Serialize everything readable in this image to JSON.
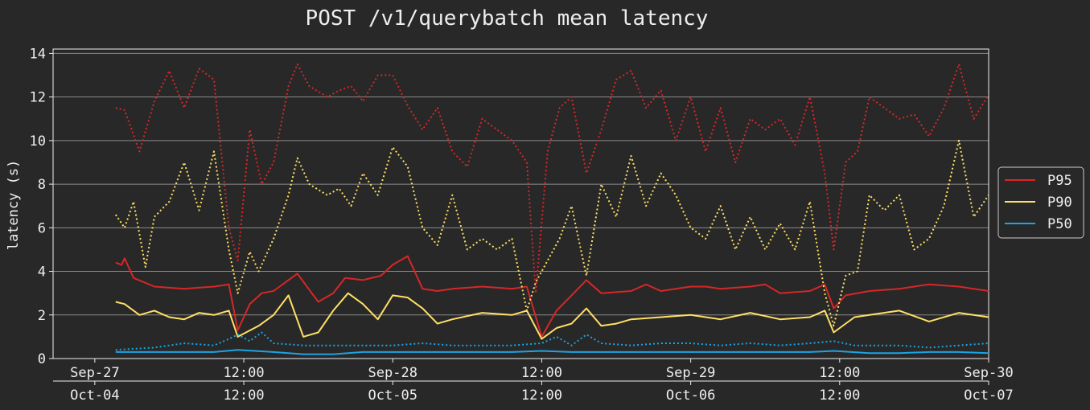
{
  "chart_data": {
    "type": "line",
    "title": "POST /v1/querybatch mean latency",
    "ylabel": "latency (s)",
    "ylim": [
      0,
      14.2
    ],
    "yticks": [
      0,
      2,
      4,
      6,
      8,
      10,
      12,
      14
    ],
    "xlim": [
      -0.14,
      3.0
    ],
    "grid": "horizontal",
    "legend_position": "right",
    "x_axis_primary": {
      "ticks": [
        0,
        0.5,
        1,
        1.5,
        2,
        2.5,
        3
      ],
      "labels": [
        "Sep-27",
        "12:00",
        "Sep-28",
        "12:00",
        "Sep-29",
        "12:00",
        "Sep-30"
      ]
    },
    "x_axis_secondary": {
      "ticks": [
        0,
        0.5,
        1,
        1.5,
        2,
        2.5,
        3
      ],
      "labels": [
        "Oct-04",
        "12:00",
        "Oct-05",
        "12:00",
        "Oct-06",
        "12:00",
        "Oct-07"
      ]
    },
    "series": [
      {
        "name": "P95",
        "color": "#d62728",
        "style": "solid",
        "period": "Sep-27 to Sep-30",
        "x": [
          0.07,
          0.09,
          0.1,
          0.13,
          0.2,
          0.3,
          0.4,
          0.45,
          0.48,
          0.52,
          0.56,
          0.6,
          0.68,
          0.75,
          0.8,
          0.84,
          0.9,
          0.96,
          1.0,
          1.05,
          1.1,
          1.15,
          1.2,
          1.3,
          1.4,
          1.45,
          1.5,
          1.55,
          1.6,
          1.65,
          1.7,
          1.8,
          1.85,
          1.9,
          2.0,
          2.05,
          2.1,
          2.2,
          2.25,
          2.3,
          2.4,
          2.45,
          2.48,
          2.52,
          2.6,
          2.7,
          2.8,
          2.9,
          3.0
        ],
        "y": [
          4.4,
          4.3,
          4.6,
          3.7,
          3.3,
          3.2,
          3.3,
          3.4,
          1.3,
          2.5,
          3.0,
          3.1,
          3.9,
          2.6,
          3.0,
          3.7,
          3.6,
          3.8,
          4.3,
          4.7,
          3.2,
          3.1,
          3.2,
          3.3,
          3.2,
          3.3,
          1.0,
          2.2,
          2.9,
          3.6,
          3.0,
          3.1,
          3.4,
          3.1,
          3.3,
          3.3,
          3.2,
          3.3,
          3.4,
          3.0,
          3.1,
          3.4,
          2.3,
          2.9,
          3.1,
          3.2,
          3.4,
          3.3,
          3.1
        ]
      },
      {
        "name": "P90",
        "color": "#ffe066",
        "style": "solid",
        "period": "Sep-27 to Sep-30",
        "x": [
          0.07,
          0.1,
          0.15,
          0.2,
          0.25,
          0.3,
          0.35,
          0.4,
          0.45,
          0.48,
          0.55,
          0.6,
          0.65,
          0.7,
          0.75,
          0.8,
          0.85,
          0.9,
          0.95,
          1.0,
          1.05,
          1.1,
          1.15,
          1.2,
          1.3,
          1.4,
          1.45,
          1.5,
          1.55,
          1.6,
          1.65,
          1.7,
          1.75,
          1.8,
          1.9,
          2.0,
          2.1,
          2.2,
          2.3,
          2.4,
          2.45,
          2.48,
          2.55,
          2.6,
          2.7,
          2.8,
          2.9,
          3.0
        ],
        "y": [
          2.6,
          2.5,
          2.0,
          2.2,
          1.9,
          1.8,
          2.1,
          2.0,
          2.2,
          1.0,
          1.5,
          2.0,
          2.9,
          1.0,
          1.2,
          2.2,
          3.0,
          2.5,
          1.8,
          2.9,
          2.8,
          2.3,
          1.6,
          1.8,
          2.1,
          2.0,
          2.2,
          0.9,
          1.4,
          1.6,
          2.3,
          1.5,
          1.6,
          1.8,
          1.9,
          2.0,
          1.8,
          2.1,
          1.8,
          1.9,
          2.2,
          1.2,
          1.9,
          2.0,
          2.2,
          1.7,
          2.1,
          1.9
        ]
      },
      {
        "name": "P50",
        "color": "#1ba4e4",
        "style": "solid",
        "period": "Sep-27 to Sep-30",
        "x": [
          0.07,
          0.2,
          0.4,
          0.48,
          0.6,
          0.7,
          0.8,
          0.9,
          1.0,
          1.1,
          1.2,
          1.3,
          1.4,
          1.5,
          1.6,
          1.7,
          1.8,
          1.9,
          2.0,
          2.1,
          2.2,
          2.3,
          2.4,
          2.48,
          2.6,
          2.7,
          2.8,
          2.9,
          3.0
        ],
        "y": [
          0.3,
          0.3,
          0.3,
          0.4,
          0.3,
          0.2,
          0.2,
          0.3,
          0.3,
          0.3,
          0.3,
          0.3,
          0.3,
          0.35,
          0.3,
          0.3,
          0.3,
          0.3,
          0.3,
          0.3,
          0.3,
          0.3,
          0.3,
          0.35,
          0.25,
          0.25,
          0.3,
          0.3,
          0.25
        ]
      },
      {
        "name": "",
        "color": "#d62728",
        "style": "dotted",
        "period": "Oct-04 to Oct-07",
        "x": [
          0.07,
          0.1,
          0.15,
          0.2,
          0.25,
          0.3,
          0.35,
          0.4,
          0.45,
          0.48,
          0.52,
          0.56,
          0.6,
          0.65,
          0.68,
          0.72,
          0.78,
          0.82,
          0.86,
          0.9,
          0.95,
          1.0,
          1.05,
          1.1,
          1.15,
          1.2,
          1.25,
          1.3,
          1.35,
          1.4,
          1.45,
          1.48,
          1.52,
          1.56,
          1.6,
          1.65,
          1.7,
          1.75,
          1.8,
          1.85,
          1.9,
          1.95,
          2.0,
          2.05,
          2.1,
          2.15,
          2.2,
          2.25,
          2.3,
          2.35,
          2.4,
          2.45,
          2.48,
          2.52,
          2.56,
          2.6,
          2.65,
          2.7,
          2.75,
          2.8,
          2.85,
          2.9,
          2.95,
          3.0
        ],
        "y": [
          11.5,
          11.4,
          9.5,
          11.8,
          13.2,
          11.5,
          13.3,
          12.8,
          6.0,
          4.5,
          10.5,
          8.0,
          9.0,
          12.5,
          13.5,
          12.5,
          12.0,
          12.3,
          12.5,
          11.8,
          13.0,
          13.0,
          11.6,
          10.5,
          11.5,
          9.5,
          8.8,
          11.0,
          10.5,
          10.0,
          9.0,
          3.0,
          9.5,
          11.5,
          12.0,
          8.5,
          10.5,
          12.8,
          13.2,
          11.5,
          12.3,
          10.0,
          12.0,
          9.5,
          11.5,
          9.0,
          11.0,
          10.5,
          11.0,
          9.8,
          12.0,
          8.5,
          5.0,
          9.0,
          9.5,
          12.0,
          11.5,
          11.0,
          11.2,
          10.2,
          11.5,
          13.5,
          11.0,
          12.1
        ]
      },
      {
        "name": "",
        "color": "#ffe066",
        "style": "dotted",
        "period": "Oct-04 to Oct-07",
        "x": [
          0.07,
          0.1,
          0.13,
          0.17,
          0.2,
          0.25,
          0.3,
          0.35,
          0.4,
          0.45,
          0.48,
          0.52,
          0.55,
          0.6,
          0.65,
          0.68,
          0.72,
          0.78,
          0.82,
          0.86,
          0.9,
          0.95,
          1.0,
          1.05,
          1.1,
          1.15,
          1.2,
          1.25,
          1.3,
          1.35,
          1.4,
          1.45,
          1.48,
          1.52,
          1.56,
          1.6,
          1.65,
          1.7,
          1.75,
          1.8,
          1.85,
          1.9,
          1.95,
          2.0,
          2.05,
          2.1,
          2.15,
          2.2,
          2.25,
          2.3,
          2.35,
          2.4,
          2.45,
          2.48,
          2.52,
          2.56,
          2.6,
          2.65,
          2.7,
          2.75,
          2.8,
          2.85,
          2.9,
          2.95,
          3.0
        ],
        "y": [
          6.6,
          6.0,
          7.2,
          4.2,
          6.5,
          7.2,
          9.0,
          6.8,
          9.5,
          5.0,
          3.0,
          4.9,
          4.0,
          5.5,
          7.5,
          9.2,
          8.0,
          7.5,
          7.8,
          7.0,
          8.5,
          7.5,
          9.7,
          8.8,
          6.0,
          5.2,
          7.5,
          5.0,
          5.5,
          5.0,
          5.5,
          2.2,
          3.5,
          4.5,
          5.5,
          7.0,
          3.8,
          8.0,
          6.5,
          9.3,
          7.0,
          8.5,
          7.5,
          6.0,
          5.5,
          7.0,
          5.0,
          6.5,
          5.0,
          6.2,
          5.0,
          7.2,
          3.0,
          1.5,
          3.8,
          4.0,
          7.5,
          6.8,
          7.5,
          5.0,
          5.5,
          7.0,
          10.0,
          6.5,
          7.5
        ]
      },
      {
        "name": "",
        "color": "#1ba4e4",
        "style": "dotted",
        "period": "Oct-04 to Oct-07",
        "x": [
          0.07,
          0.2,
          0.3,
          0.4,
          0.45,
          0.48,
          0.52,
          0.56,
          0.6,
          0.7,
          0.8,
          0.9,
          1.0,
          1.1,
          1.2,
          1.3,
          1.4,
          1.5,
          1.55,
          1.6,
          1.65,
          1.7,
          1.8,
          1.9,
          2.0,
          2.1,
          2.2,
          2.3,
          2.4,
          2.48,
          2.55,
          2.6,
          2.7,
          2.8,
          2.9,
          3.0
        ],
        "y": [
          0.4,
          0.5,
          0.7,
          0.6,
          0.9,
          1.1,
          0.8,
          1.2,
          0.7,
          0.6,
          0.6,
          0.6,
          0.6,
          0.7,
          0.6,
          0.6,
          0.6,
          0.7,
          1.0,
          0.6,
          1.1,
          0.7,
          0.6,
          0.7,
          0.7,
          0.6,
          0.7,
          0.6,
          0.7,
          0.8,
          0.6,
          0.6,
          0.6,
          0.5,
          0.6,
          0.7
        ]
      }
    ]
  }
}
